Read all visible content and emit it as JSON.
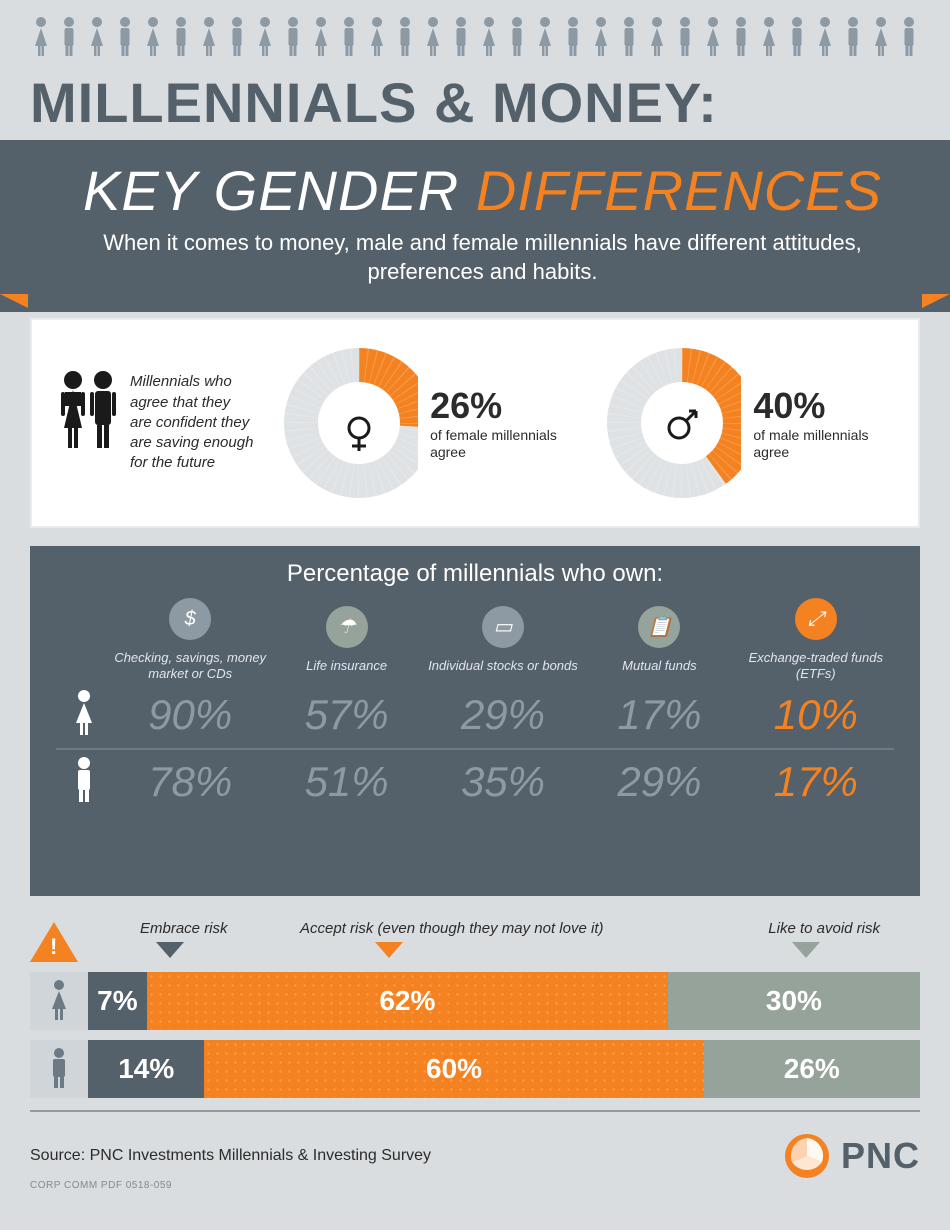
{
  "colors": {
    "orange": "#f58220",
    "slate": "#54606a",
    "slate_light": "#8d99a3",
    "sage": "#95a39a",
    "bg": "#d9dde0",
    "grey_ring": "#dfe2e4",
    "text_dark": "#2b2b2b",
    "white": "#ffffff"
  },
  "title_line1": "MILLENNIALS & MONEY:",
  "title_line2a": "KEY GENDER ",
  "title_line2b": "DIFFERENCES",
  "subtitle": "When it comes to money, male and female millennials have different attitudes, preferences and habits.",
  "panel1": {
    "intro": "Millennials who agree that they are confident they are saving enough for the future",
    "female": {
      "pct": 26,
      "pct_label": "26%",
      "sub": "of female millennials agree"
    },
    "male": {
      "pct": 40,
      "pct_label": "40%",
      "sub": "of male millennials agree"
    },
    "ring_color": "#dfe2e4",
    "fill_color": "#f58220",
    "donut_size": 150,
    "donut_thickness": 34
  },
  "panel2": {
    "title": "Percentage of millennials who own:",
    "columns": [
      {
        "label": "Checking, savings, money market or CDs",
        "icon": "$",
        "circ_bg": "#8d99a3",
        "val_color": "#8d99a3",
        "female": "90%",
        "male": "78%"
      },
      {
        "label": "Life insurance",
        "icon": "☂",
        "circ_bg": "#95a39a",
        "val_color": "#8d99a3",
        "female": "57%",
        "male": "51%"
      },
      {
        "label": "Individual stocks or bonds",
        "icon": "▭",
        "circ_bg": "#8d99a3",
        "val_color": "#8d99a3",
        "female": "29%",
        "male": "35%"
      },
      {
        "label": "Mutual funds",
        "icon": "📋",
        "circ_bg": "#95a39a",
        "val_color": "#8d99a3",
        "female": "17%",
        "male": "29%"
      },
      {
        "label": "Exchange-traded funds (ETFs)",
        "icon": "⤢",
        "circ_bg": "#f58220",
        "val_color": "#f58220",
        "female": "10%",
        "male": "17%"
      }
    ]
  },
  "panel3": {
    "labels": {
      "embrace": "Embrace risk",
      "accept": "Accept risk (even though they may not love it)",
      "avoid": "Like to avoid risk"
    },
    "seg_colors": {
      "embrace": "#54606a",
      "accept": "#f58220",
      "avoid": "#95a39a"
    },
    "rows": [
      {
        "who": "female",
        "embrace": 7,
        "embrace_label": "7%",
        "accept": 62,
        "accept_label": "62%",
        "avoid": 30,
        "avoid_label": "30%"
      },
      {
        "who": "male",
        "embrace": 14,
        "embrace_label": "14%",
        "accept": 60,
        "accept_label": "60%",
        "avoid": 26,
        "avoid_label": "26%"
      }
    ]
  },
  "footer": {
    "source": "Source: PNC Investments Millennials & Investing Survey",
    "docid": "CORP COMM PDF 0518-059",
    "brand": "PNC"
  }
}
